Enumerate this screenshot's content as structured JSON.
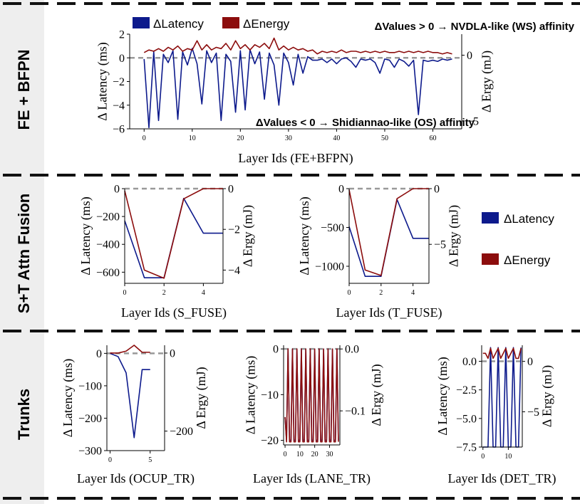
{
  "colors": {
    "latency": "#0d1a8c",
    "energy": "#8c0d0d",
    "zero_line": "#999999",
    "section_bg": "#eeeeee"
  },
  "sections": [
    {
      "label": "FE + BFPN"
    },
    {
      "label": "S+T Attn Fusion"
    },
    {
      "label": "Trunks"
    }
  ],
  "legend_labels": {
    "latency": "ΔLatency",
    "energy": "ΔEnergy"
  },
  "annotations": {
    "positive": "ΔValues > 0 → NVDLA-like (WS) affinity",
    "negative": "ΔValues < 0 → Shidiannao-like (OS)  affinity"
  },
  "chart_data": [
    {
      "type": "line",
      "id": "fe",
      "xlabel": "Layer Ids (FE+BFPN)",
      "ylabel": "Δ Latency (ms)",
      "ylabel2": "Δ Ergy (mJ)",
      "xlim": [
        -3,
        66
      ],
      "ylim": [
        -6,
        2
      ],
      "y2lim": [
        -5.6,
        1.6
      ],
      "xticks": [
        0,
        10,
        20,
        30,
        40,
        50,
        60
      ],
      "yticks": [
        2,
        0,
        -2,
        -4,
        -6
      ],
      "y2ticks": [
        0,
        -5
      ],
      "x": [
        0,
        1,
        2,
        3,
        4,
        5,
        6,
        7,
        8,
        9,
        10,
        11,
        12,
        13,
        14,
        15,
        16,
        17,
        18,
        19,
        20,
        21,
        22,
        23,
        24,
        25,
        26,
        27,
        28,
        29,
        30,
        31,
        32,
        33,
        34,
        35,
        36,
        37,
        38,
        39,
        40,
        41,
        42,
        43,
        44,
        45,
        46,
        47,
        48,
        49,
        50,
        51,
        52,
        53,
        54,
        55,
        56,
        57,
        58,
        59,
        60,
        61,
        62,
        63,
        64
      ],
      "series": [
        {
          "name": "ΔLatency",
          "axis": "left",
          "values": [
            -0.1,
            -5.9,
            0.5,
            -5.3,
            0.3,
            -0.4,
            0.6,
            -5.2,
            0.5,
            -0.6,
            0.8,
            -0.5,
            -3.9,
            0.6,
            -0.4,
            0.4,
            -5.3,
            0.3,
            -0.3,
            -4.6,
            0.6,
            -4.4,
            0.7,
            -0.5,
            0.5,
            -3.5,
            0.4,
            -0.6,
            -4.0,
            0.4,
            -0.4,
            -2.3,
            0.3,
            -1.3,
            0.1,
            -0.2,
            -0.2,
            -0.1,
            -0.4,
            -0.1,
            -0.5,
            -0.1,
            0.0,
            -0.3,
            -0.8,
            -0.1,
            -0.2,
            -0.1,
            -0.4,
            -1.3,
            -0.1,
            -0.2,
            -0.8,
            -0.1,
            -0.3,
            -0.7,
            -0.2,
            -4.8,
            -0.2,
            -0.3,
            -0.2,
            -0.3,
            -0.1,
            -0.2,
            -0.1
          ]
        },
        {
          "name": "ΔEnergy",
          "axis": "right",
          "values": [
            0.2,
            0.4,
            0.3,
            0.5,
            0.3,
            0.6,
            0.4,
            0.7,
            0.3,
            0.5,
            0.4,
            1.1,
            0.4,
            0.8,
            0.4,
            0.6,
            0.5,
            0.9,
            0.4,
            1.1,
            0.5,
            0.8,
            0.4,
            0.8,
            0.6,
            0.9,
            0.5,
            1.3,
            0.4,
            0.7,
            0.4,
            0.6,
            0.4,
            0.5,
            0.3,
            0.4,
            0.1,
            0.3,
            0.2,
            0.3,
            0.2,
            0.4,
            0.2,
            0.3,
            0.3,
            0.2,
            0.3,
            0.2,
            0.3,
            0.2,
            0.3,
            0.2,
            0.2,
            0.3,
            0.2,
            0.3,
            0.2,
            0.3,
            0.2,
            0.3,
            0.2,
            0.2,
            0.1,
            0.2,
            0.1
          ]
        }
      ]
    },
    {
      "type": "line",
      "id": "s_fuse",
      "xlabel": "Layer Ids (S_FUSE)",
      "ylabel": "Δ Latency (ms)",
      "ylabel2": "Δ Ergy (mJ)",
      "xlim": [
        0,
        5
      ],
      "ylim": [
        -680,
        0
      ],
      "y2lim": [
        -4.65,
        0
      ],
      "xticks": [
        0,
        2,
        4
      ],
      "yticks": [
        0,
        -200,
        -400,
        -600
      ],
      "y2ticks": [
        0,
        -2,
        -4
      ],
      "x": [
        0,
        1,
        2,
        3,
        4,
        5
      ],
      "series": [
        {
          "name": "ΔLatency",
          "axis": "left",
          "values": [
            -230,
            -640,
            -640,
            -70,
            -320,
            -320
          ]
        },
        {
          "name": "ΔEnergy",
          "axis": "right",
          "values": [
            -0.1,
            -4.0,
            -4.4,
            -0.5,
            0,
            0
          ]
        }
      ]
    },
    {
      "type": "line",
      "id": "t_fuse",
      "xlabel": "Layer Ids (T_FUSE)",
      "ylabel": "Δ Latency (ms)",
      "ylabel2": "Δ Ergy (mJ)",
      "xlim": [
        0,
        5
      ],
      "ylim": [
        -1220,
        0
      ],
      "y2lim": [
        -8.5,
        0
      ],
      "xticks": [
        0,
        2,
        4
      ],
      "yticks": [
        0,
        -500,
        -1000
      ],
      "y2ticks": [
        0,
        -5
      ],
      "x": [
        0,
        1,
        2,
        3,
        4,
        5
      ],
      "series": [
        {
          "name": "ΔLatency",
          "axis": "left",
          "values": [
            -490,
            -1130,
            -1130,
            -140,
            -640,
            -640
          ]
        },
        {
          "name": "ΔEnergy",
          "axis": "right",
          "values": [
            -0.1,
            -7.3,
            -7.8,
            -0.9,
            0,
            0
          ]
        }
      ]
    },
    {
      "type": "line",
      "id": "ocup",
      "xlabel": "Layer Ids (OCUP_TR)",
      "ylabel": "Δ Latency (ms)",
      "ylabel2": "Δ Ergy (mJ)",
      "xlim": [
        -0.4,
        6.8
      ],
      "ylim": [
        -300,
        25
      ],
      "y2lim": [
        -250,
        20
      ],
      "xticks": [
        0,
        5
      ],
      "yticks": [
        0,
        -100,
        -200,
        -300
      ],
      "y2ticks": [
        0,
        -200
      ],
      "x": [
        0,
        1,
        2,
        3,
        4,
        5
      ],
      "series": [
        {
          "name": "ΔLatency",
          "axis": "left",
          "values": [
            0,
            -10,
            -60,
            -260,
            -50,
            -50
          ]
        },
        {
          "name": "ΔEnergy",
          "axis": "right",
          "values": [
            0,
            0,
            5,
            20,
            2,
            2
          ]
        }
      ]
    },
    {
      "type": "line",
      "id": "lane",
      "xlabel": "Layer Ids (LANE_TR)",
      "ylabel": "Δ Latency (ms)",
      "ylabel2": "Δ Ergy (mJ)",
      "xlim": [
        -1,
        37
      ],
      "ylim": [
        -21,
        0.8
      ],
      "y2lim": [
        -0.155,
        0.006
      ],
      "xticks": [
        0,
        10,
        20,
        30
      ],
      "yticks": [
        0,
        -10,
        -20
      ],
      "y2ticks": [
        0.0,
        -0.1
      ],
      "x": [
        0,
        1,
        2,
        3,
        4,
        5,
        6,
        7,
        8,
        9,
        10,
        11,
        12,
        13,
        14,
        15,
        16,
        17,
        18,
        19,
        20,
        21,
        22,
        23,
        24,
        25,
        26,
        27,
        28,
        29,
        30,
        31,
        32,
        33,
        34,
        35,
        36
      ],
      "series": [
        {
          "name": "ΔLatency",
          "axis": "left",
          "values": [
            -15,
            -20,
            0,
            -20,
            -20,
            0,
            -20,
            -20,
            0,
            -20,
            -20,
            0,
            -20,
            -20,
            0,
            -20,
            -20,
            0,
            -20,
            -20,
            0,
            -20,
            -20,
            0,
            -20,
            -20,
            0,
            -20,
            -20,
            0,
            -20,
            -20,
            0,
            -20,
            -20,
            0,
            -20
          ]
        },
        {
          "name": "ΔEnergy",
          "axis": "right",
          "values": [
            -0.11,
            -0.15,
            0,
            -0.15,
            -0.15,
            0,
            -0.15,
            -0.15,
            0,
            -0.15,
            -0.15,
            0,
            -0.15,
            -0.15,
            0,
            -0.15,
            -0.15,
            0,
            -0.15,
            -0.15,
            0,
            -0.15,
            -0.15,
            0,
            -0.15,
            -0.15,
            0,
            -0.15,
            -0.15,
            0,
            -0.15,
            -0.15,
            0,
            -0.15,
            -0.15,
            0,
            -0.15
          ]
        }
      ]
    },
    {
      "type": "line",
      "id": "det",
      "xlabel": "Layer Ids (DET_TR)",
      "ylabel": "Δ Latency (ms)",
      "ylabel2": "Δ Ergy (mJ)",
      "xlim": [
        -0.5,
        15.5
      ],
      "ylim": [
        -7.5,
        1.4
      ],
      "y2lim": [
        -8.5,
        1.6
      ],
      "xticks": [
        0,
        10
      ],
      "yticks": [
        0.0,
        -2.5,
        -5.0,
        -7.5
      ],
      "y2ticks": [
        0,
        -5
      ],
      "x": [
        0,
        1,
        2,
        3,
        4,
        5,
        6,
        7,
        8,
        9,
        10,
        11,
        12,
        13,
        14,
        15
      ],
      "series": [
        {
          "name": "ΔLatency",
          "axis": "left",
          "values": [
            -7.5,
            -7.5,
            -7.5,
            1.2,
            -7.5,
            -7.5,
            1.2,
            -7.5,
            -7.5,
            1.2,
            -7.5,
            -7.5,
            1.2,
            -7.5,
            -7.5,
            1.2
          ]
        },
        {
          "name": "ΔEnergy",
          "axis": "right",
          "values": [
            0.8,
            0.8,
            0.3,
            1.3,
            0.3,
            0.8,
            1.3,
            0.3,
            0.8,
            1.3,
            0.3,
            0.8,
            1.3,
            0.3,
            0.3,
            1.3
          ]
        }
      ]
    }
  ]
}
